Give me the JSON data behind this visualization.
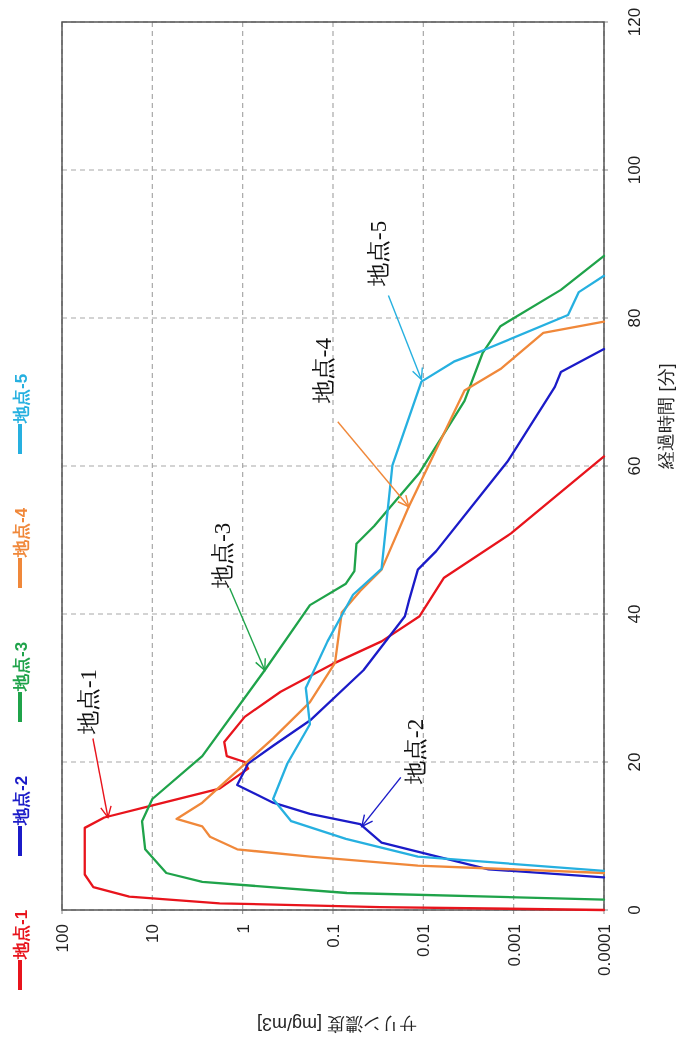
{
  "chart_data": {
    "type": "line",
    "xlabel": "サリン濃度 [mg/m3]",
    "ylabel": "経過時間 [分]",
    "xlim": [
      100,
      0.0001
    ],
    "xticks": [
      100,
      10,
      1,
      0.1,
      0.01,
      0.001,
      0.0001
    ],
    "ylim": [
      0,
      120
    ],
    "yticks": [
      0,
      20,
      40,
      60,
      80,
      100,
      120
    ],
    "log": "x",
    "grid": true,
    "legend": "left",
    "series": [
      {
        "name": "地点-1",
        "color": "#e8141c",
        "values": [
          0,
          0.4,
          0.9,
          1.8,
          3.1,
          4.8,
          11.1,
          12.5,
          14.0,
          16.4,
          19.1,
          20.0,
          20.8,
          22.7,
          26.1,
          29.5,
          33.4,
          36.3,
          39.7,
          44.9,
          50.9,
          61.3
        ],
        "x": [
          0.0001,
          0.03,
          1.8,
          18,
          45,
          56,
          56,
          34,
          11,
          1.8,
          0.87,
          0.95,
          1.5,
          1.6,
          0.95,
          0.38,
          0.095,
          0.029,
          0.011,
          0.0059,
          0.00107,
          0.0001
        ]
      },
      {
        "name": "地点-2",
        "color": "#1b1bc8",
        "values": [
          4.4,
          5.5,
          9.1,
          11.6,
          13,
          14.5,
          16.9,
          19.8,
          22.2,
          25.6,
          32.4,
          39.7,
          41.7,
          46,
          48.5,
          60.6,
          70.7,
          72.7,
          75.8
        ],
        "x": [
          0.0001,
          0.0019,
          0.029,
          0.05,
          0.18,
          0.46,
          1.15,
          0.87,
          0.46,
          0.18,
          0.046,
          0.016,
          0.0145,
          0.0115,
          0.0072,
          0.00117,
          0.00035,
          0.0003,
          0.0001
        ]
      },
      {
        "name": "地点-3",
        "color": "#1fa34a",
        "values": [
          1.4,
          2.3,
          3.8,
          5,
          8.2,
          12,
          15,
          20.8,
          32.4,
          41.2,
          44.1,
          45.8,
          49.5,
          51.9,
          59.1,
          68.8,
          75.3,
          78.9,
          83.8,
          88.4
        ],
        "x": [
          0.0001,
          0.07,
          2.8,
          7,
          12,
          13,
          10,
          2.8,
          0.57,
          0.18,
          0.072,
          0.058,
          0.055,
          0.035,
          0.011,
          0.0035,
          0.0022,
          0.0014,
          0.0003,
          0.0001
        ]
      },
      {
        "name": "地点-4",
        "color": "#f0883a",
        "values": [
          5,
          6,
          7.2,
          8.2,
          9.9,
          11.3,
          12.3,
          14.5,
          18.8,
          23.2,
          28.1,
          33.4,
          40.2,
          43.1,
          46,
          54.5,
          70.2,
          73.1,
          78,
          79.5
        ],
        "x": [
          0.0001,
          0.0115,
          0.18,
          1.15,
          2.3,
          2.8,
          5.4,
          2.8,
          1.15,
          0.46,
          0.18,
          0.095,
          0.08,
          0.05,
          0.029,
          0.0145,
          0.0035,
          0.0014,
          0.00047,
          0.0001
        ]
      },
      {
        "name": "地点-5",
        "color": "#26b0e0",
        "values": [
          5.3,
          7.2,
          9.6,
          12,
          15,
          19.8,
          25.1,
          30,
          36.3,
          42.6,
          46.1,
          60.1,
          71.4,
          74.1,
          75.6,
          80.4,
          83.5,
          85.7
        ],
        "x": [
          0.0001,
          0.0115,
          0.072,
          0.29,
          0.46,
          0.32,
          0.18,
          0.2,
          0.115,
          0.06,
          0.029,
          0.022,
          0.0105,
          0.0046,
          0.0022,
          0.00025,
          0.00019,
          0.0001
        ]
      }
    ],
    "annotations": [
      {
        "text": "地点-1",
        "x": 31,
        "y": 12.5
      },
      {
        "text": "地点-2",
        "x": 0.048,
        "y": 11.3
      },
      {
        "text": "地点-3",
        "x": 0.57,
        "y": 32.4
      },
      {
        "text": "地点-4",
        "x": 0.0145,
        "y": 54.5
      },
      {
        "text": "地点-5",
        "x": 0.0105,
        "y": 71.7
      }
    ]
  }
}
